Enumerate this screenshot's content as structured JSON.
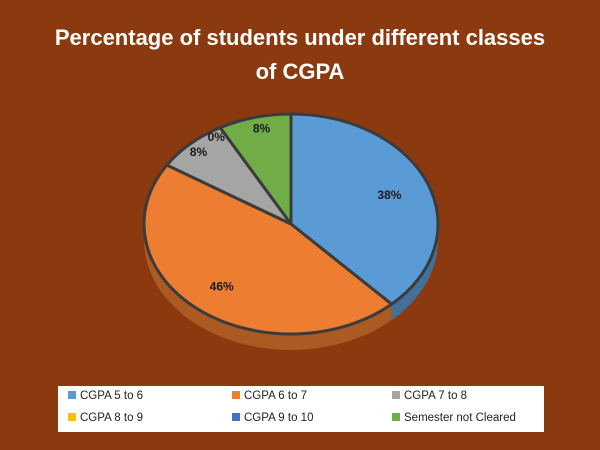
{
  "chart_data": {
    "type": "pie",
    "title_lines": [
      "Percentage of students under different classes",
      "of CGPA"
    ],
    "slices": [
      {
        "label": "CGPA 5 to 6",
        "value": 38,
        "display": "38%",
        "color": "#5b9bd5"
      },
      {
        "label": "CGPA 6 to 7",
        "value": 46,
        "display": "46%",
        "color": "#ed7d31"
      },
      {
        "label": "CGPA 7 to 8",
        "value": 8,
        "display": "8%",
        "color": "#a5a5a5"
      },
      {
        "label": "CGPA 8 to 9",
        "value": 0,
        "display": "0%",
        "color": "#ffc000"
      },
      {
        "label": "CGPA 9 to 10",
        "value": 0,
        "display": "0%",
        "color": "#4472c4"
      },
      {
        "label": "Semester not Cleared",
        "value": 8,
        "display": "8%",
        "color": "#70ad47"
      }
    ],
    "legend_position": "bottom"
  },
  "colors": {
    "background": "#8a3a0e",
    "title": "#ffffff",
    "legend_background": "#ffffff"
  }
}
